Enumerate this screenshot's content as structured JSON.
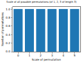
{
  "chart_data": {
    "type": "bar",
    "title": "Scale of all possible permutations (of 1, 2, 3 of length 3)",
    "x_label": "Scale of permutation",
    "y_label": "Number of permutations",
    "x": [
      0,
      1,
      2,
      3,
      4,
      5
    ],
    "values": [
      1,
      1,
      1,
      1,
      1,
      1
    ],
    "color": "#1f77b4",
    "xlim": [
      -0.5,
      5.5
    ],
    "xticks": [
      0,
      1,
      2,
      3,
      4,
      5
    ],
    "ylim": [
      0,
      1.05
    ],
    "yticks": [
      {
        "value": 0,
        "label": "0.0"
      },
      {
        "value": 0.2,
        "label": "0.2"
      },
      {
        "value": 0.4,
        "label": "0.4"
      },
      {
        "value": 0.6,
        "label": "0.6"
      },
      {
        "value": 0.8,
        "label": "0.8"
      },
      {
        "value": 1,
        "label": "1.0"
      }
    ],
    "grid": false
  }
}
